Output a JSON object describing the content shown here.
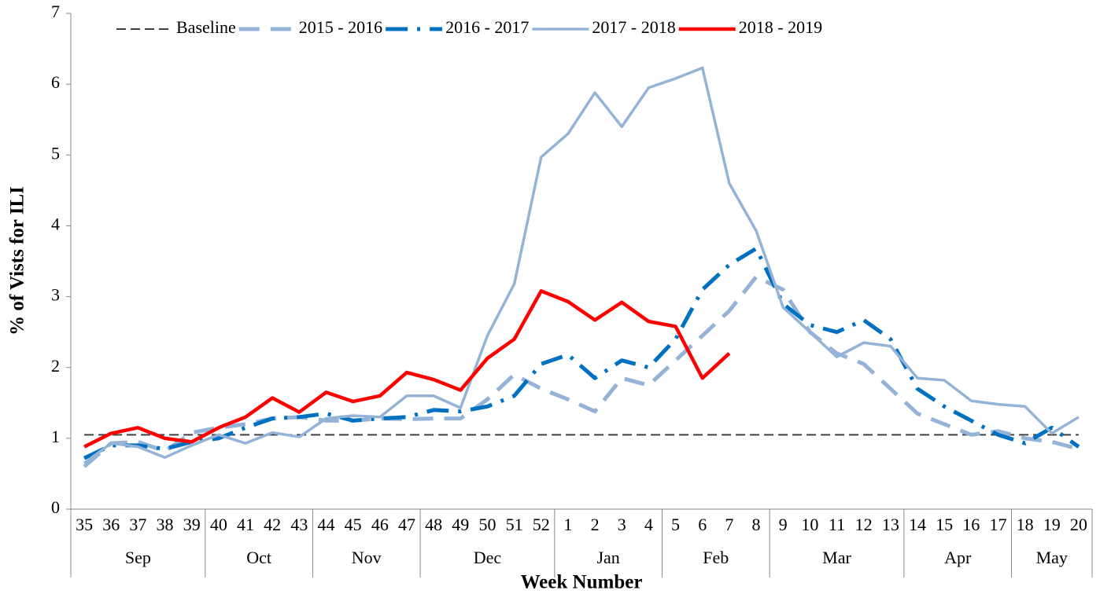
{
  "chart_data": {
    "type": "line",
    "y_label": "% of Vists for ILI",
    "x_label": "Week Number",
    "categories": [
      "35",
      "36",
      "37",
      "38",
      "39",
      "40",
      "41",
      "42",
      "43",
      "44",
      "45",
      "46",
      "47",
      "48",
      "49",
      "50",
      "51",
      "52",
      "1",
      "2",
      "3",
      "4",
      "5",
      "6",
      "7",
      "8",
      "9",
      "10",
      "11",
      "12",
      "13",
      "14",
      "15",
      "16",
      "17",
      "18",
      "19",
      "20"
    ],
    "months": [
      "Sep",
      null,
      null,
      null,
      null,
      "Oct",
      null,
      null,
      null,
      "Nov",
      null,
      null,
      null,
      "Dec",
      null,
      null,
      null,
      null,
      "Jan",
      null,
      null,
      null,
      "Feb",
      null,
      null,
      null,
      "Mar",
      null,
      null,
      null,
      null,
      "Apr",
      null,
      null,
      null,
      "May",
      null,
      null
    ],
    "ylim": [
      0,
      7
    ],
    "yticks": [
      0,
      1,
      2,
      3,
      4,
      5,
      6,
      7
    ],
    "grid": false,
    "legend": "top",
    "series": [
      {
        "name": "Baseline",
        "color": "#404040",
        "style": "dashed-thin",
        "values": [
          1.05,
          1.05,
          1.05,
          1.05,
          1.05,
          1.05,
          1.05,
          1.05,
          1.05,
          1.05,
          1.05,
          1.05,
          1.05,
          1.05,
          1.05,
          1.05,
          1.05,
          1.05,
          1.05,
          1.05,
          1.05,
          1.05,
          1.05,
          1.05,
          1.05,
          1.05,
          1.05,
          1.05,
          1.05,
          1.05,
          1.05,
          1.05,
          1.05,
          1.05,
          1.05,
          1.05,
          1.05,
          1.05
        ]
      },
      {
        "name": "2015 - 2016",
        "color": "#95b3d7",
        "style": "dashed",
        "values": [
          0.6,
          0.93,
          0.95,
          0.82,
          1.08,
          1.15,
          1.2,
          1.28,
          1.3,
          1.25,
          1.25,
          1.28,
          1.27,
          1.28,
          1.28,
          1.55,
          1.9,
          1.7,
          1.55,
          1.38,
          1.85,
          1.75,
          2.1,
          2.45,
          2.8,
          3.28,
          3.1,
          2.5,
          2.2,
          2.05,
          1.7,
          1.35,
          1.2,
          1.05,
          1.1,
          1.0,
          0.95,
          0.85
        ]
      },
      {
        "name": "2016 - 2017",
        "color": "#0070c0",
        "style": "dash-dot",
        "values": [
          0.72,
          0.9,
          0.9,
          0.85,
          0.95,
          1.0,
          1.15,
          1.28,
          1.3,
          1.35,
          1.25,
          1.28,
          1.3,
          1.4,
          1.38,
          1.45,
          1.6,
          2.05,
          2.18,
          1.85,
          2.1,
          2.0,
          2.4,
          3.1,
          3.45,
          3.68,
          2.9,
          2.6,
          2.5,
          2.67,
          2.4,
          1.7,
          1.45,
          1.25,
          1.05,
          0.93,
          1.15,
          0.88
        ]
      },
      {
        "name": "2017 - 2018",
        "color": "#95b3d7",
        "style": "solid",
        "values": [
          0.65,
          0.93,
          0.88,
          0.73,
          0.9,
          1.05,
          0.93,
          1.08,
          1.02,
          1.28,
          1.32,
          1.3,
          1.6,
          1.6,
          1.43,
          2.45,
          3.18,
          4.97,
          5.3,
          5.88,
          5.4,
          5.95,
          6.08,
          6.23,
          4.6,
          3.93,
          2.85,
          2.5,
          2.15,
          2.35,
          2.3,
          1.85,
          1.82,
          1.53,
          1.48,
          1.45,
          1.07,
          1.3
        ]
      },
      {
        "name": "2018 - 2019",
        "color": "#ff0000",
        "style": "solid-bold",
        "values": [
          0.88,
          1.07,
          1.15,
          1.0,
          0.95,
          1.15,
          1.3,
          1.57,
          1.37,
          1.65,
          1.52,
          1.6,
          1.93,
          1.83,
          1.68,
          2.13,
          2.4,
          3.08,
          2.93,
          2.67,
          2.92,
          2.65,
          2.58,
          1.85,
          2.2,
          null,
          null,
          null,
          null,
          null,
          null,
          null,
          null,
          null,
          null,
          null,
          null,
          null
        ]
      }
    ]
  }
}
